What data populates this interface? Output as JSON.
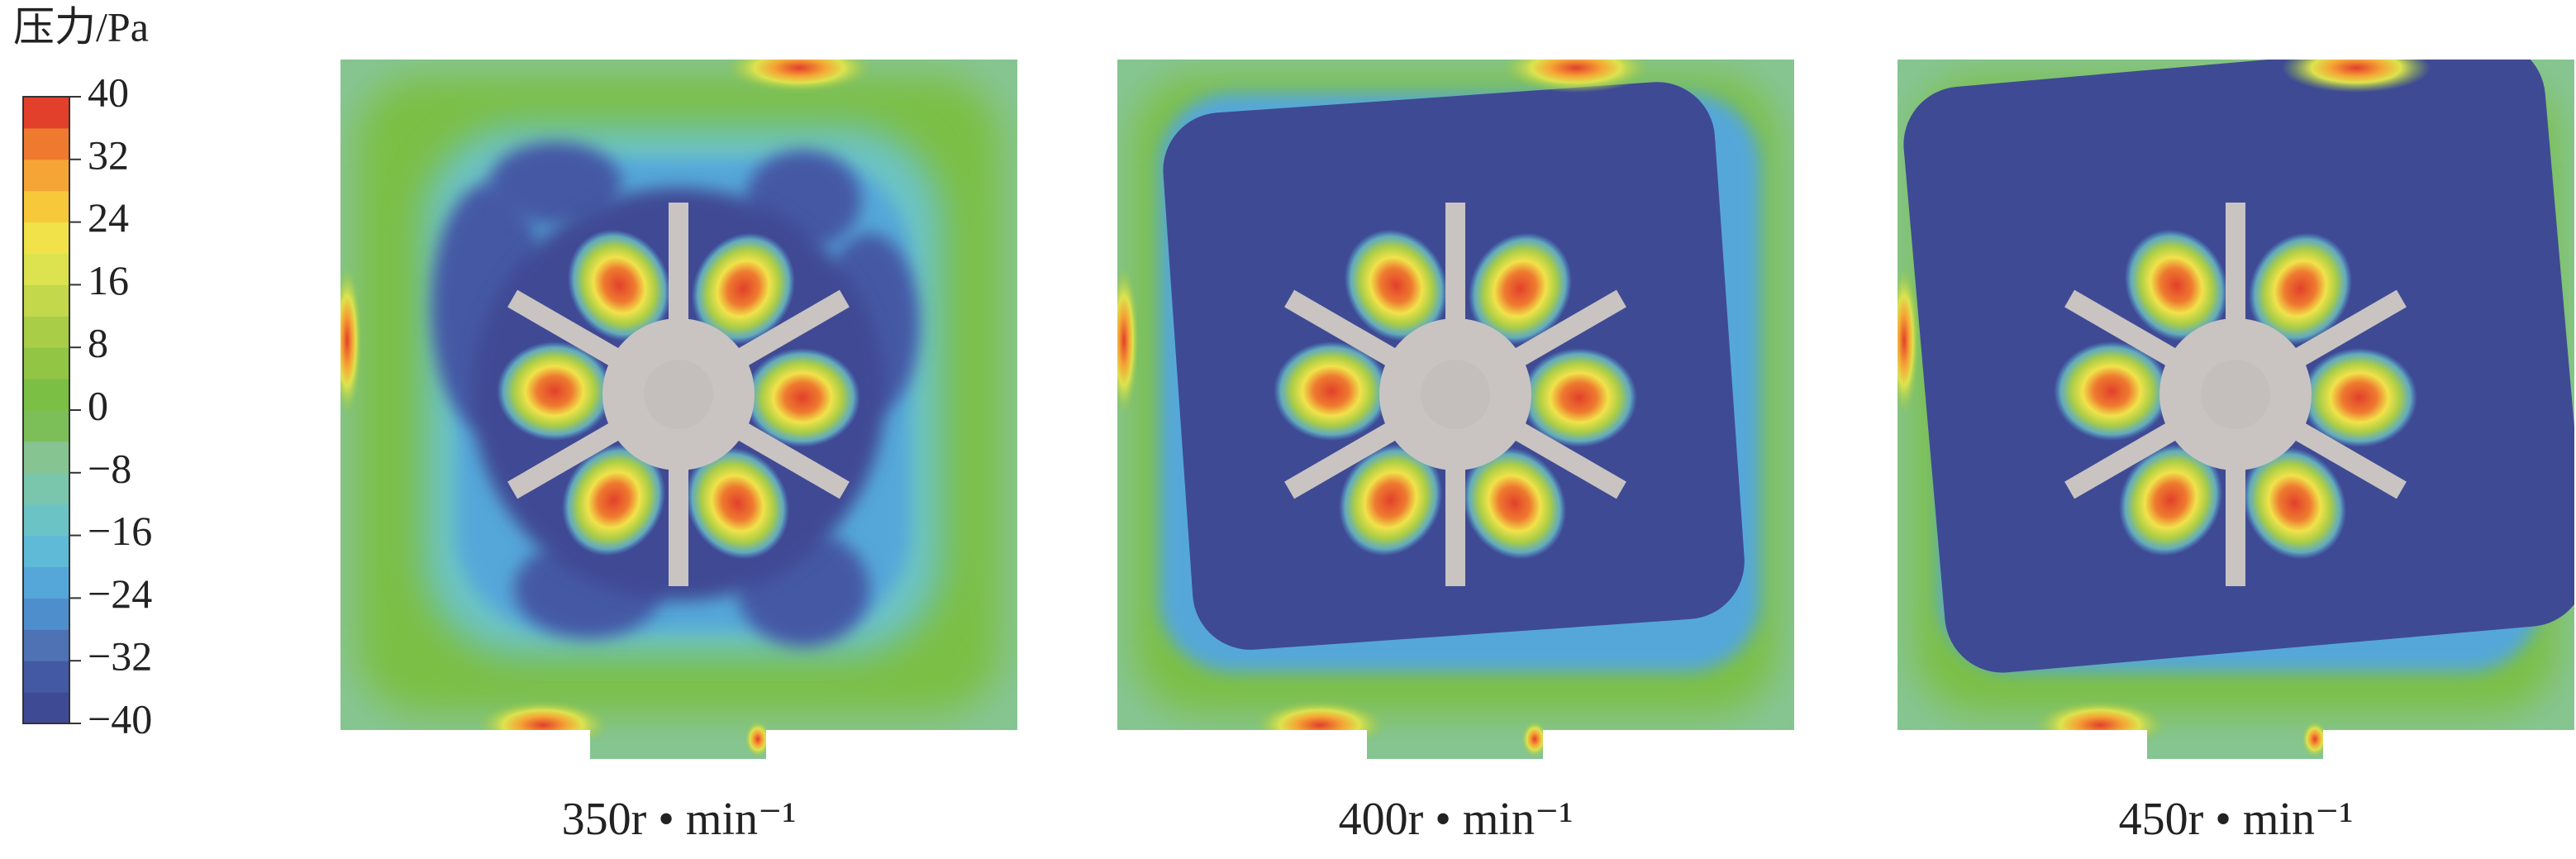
{
  "colorbar": {
    "title": "压力/Pa",
    "range": [
      -40,
      40
    ],
    "ticks": [
      40,
      32,
      24,
      16,
      8,
      0,
      {
        "value": -8,
        "label": "−8"
      },
      {
        "value": -16,
        "label": "−16"
      },
      {
        "value": -24,
        "label": "−24"
      },
      {
        "value": -32,
        "label": "−32"
      },
      {
        "value": -40,
        "label": "−40"
      }
    ],
    "colors": [
      "#3f4a94",
      "#4459a4",
      "#4f72b5",
      "#4f8ecc",
      "#55a7d9",
      "#5fbad8",
      "#6cc3c6",
      "#79c6ac",
      "#86c592",
      "#7cbf59",
      "#7bbf45",
      "#92c544",
      "#a9cd46",
      "#c3d84a",
      "#dde34e",
      "#f1e24a",
      "#f8c83b",
      "#f5a535",
      "#ee7a2f",
      "#e2402b"
    ]
  },
  "panels": [
    {
      "label": "350r • min⁻¹"
    },
    {
      "label": "400r • min⁻¹"
    },
    {
      "label": "450r • min⁻¹"
    }
  ]
}
